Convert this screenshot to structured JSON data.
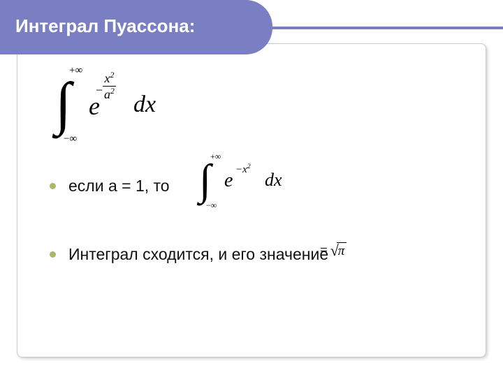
{
  "slide": {
    "title": "Интеграл Пуассона:",
    "header_fill_color": "#7a7fc3",
    "header_text_color": "#ffffff",
    "bullet_color": "#a7b966",
    "body_text_color": "#111111",
    "box_border_color": "#c9c9c9",
    "formula1": {
      "lower_limit": "−∞",
      "upper_limit": "+∞",
      "base": "e",
      "exp_numer": "x",
      "exp_numer_pow": "2",
      "exp_denom": "a",
      "exp_denom_pow": "2",
      "exp_sign": "−",
      "differential": "dx"
    },
    "bullet1_text": "если а = 1, то",
    "formula2": {
      "lower_limit": "−∞",
      "upper_limit": "+∞",
      "base": "e",
      "exponent": "−x",
      "exponent_pow": "2",
      "differential": "dx"
    },
    "bullet2_text": "Интеграл сходится, и его значение",
    "result": {
      "equals": "=",
      "radicand": "π"
    }
  }
}
